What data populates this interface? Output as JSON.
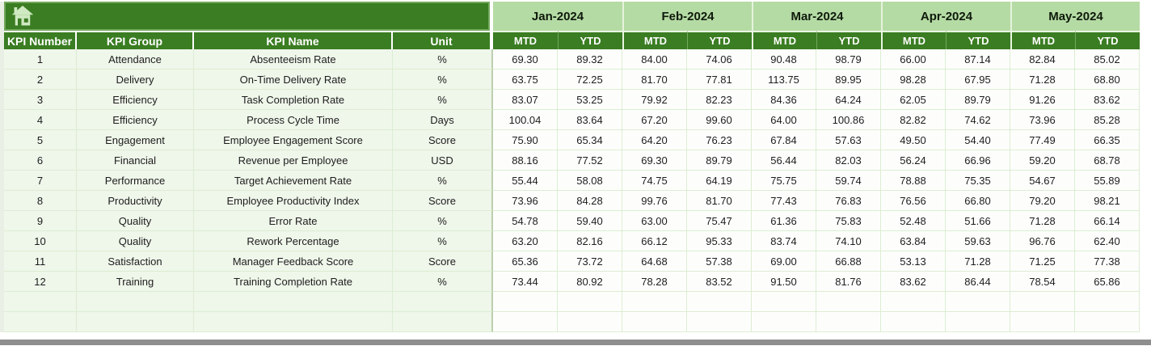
{
  "app": {
    "home_icon": "home-navigation-button"
  },
  "table": {
    "left_headers": [
      "KPI Number",
      "KPI Group",
      "KPI Name",
      "Unit"
    ],
    "months": [
      "Jan-2024",
      "Feb-2024",
      "Mar-2024",
      "Apr-2024",
      "May-2024"
    ],
    "sub_headers": [
      "MTD",
      "YTD"
    ],
    "rows": [
      {
        "number": "1",
        "group": "Attendance",
        "name": "Absenteeism Rate",
        "unit": "%",
        "values": [
          "69.30",
          "89.32",
          "84.00",
          "74.06",
          "90.48",
          "98.79",
          "66.00",
          "87.14",
          "82.84",
          "85.02"
        ]
      },
      {
        "number": "2",
        "group": "Delivery",
        "name": "On-Time Delivery Rate",
        "unit": "%",
        "values": [
          "63.75",
          "72.25",
          "81.70",
          "77.81",
          "113.75",
          "89.95",
          "98.28",
          "67.95",
          "71.28",
          "68.80"
        ]
      },
      {
        "number": "3",
        "group": "Efficiency",
        "name": "Task Completion Rate",
        "unit": "%",
        "values": [
          "83.07",
          "53.25",
          "79.92",
          "82.23",
          "84.36",
          "64.24",
          "62.05",
          "89.79",
          "91.26",
          "83.62"
        ]
      },
      {
        "number": "4",
        "group": "Efficiency",
        "name": "Process Cycle Time",
        "unit": "Days",
        "values": [
          "100.04",
          "83.64",
          "67.20",
          "99.60",
          "64.00",
          "100.86",
          "82.82",
          "74.62",
          "73.96",
          "85.28"
        ]
      },
      {
        "number": "5",
        "group": "Engagement",
        "name": "Employee Engagement Score",
        "unit": "Score",
        "values": [
          "75.90",
          "65.34",
          "64.20",
          "76.23",
          "67.84",
          "57.63",
          "49.50",
          "54.40",
          "77.49",
          "66.35"
        ]
      },
      {
        "number": "6",
        "group": "Financial",
        "name": "Revenue per Employee",
        "unit": "USD",
        "values": [
          "88.16",
          "77.52",
          "69.30",
          "89.79",
          "56.44",
          "82.03",
          "56.24",
          "66.96",
          "59.20",
          "68.78"
        ]
      },
      {
        "number": "7",
        "group": "Performance",
        "name": "Target Achievement Rate",
        "unit": "%",
        "values": [
          "55.44",
          "58.08",
          "74.75",
          "64.19",
          "75.75",
          "59.74",
          "78.88",
          "75.35",
          "54.67",
          "55.89"
        ]
      },
      {
        "number": "8",
        "group": "Productivity",
        "name": "Employee Productivity Index",
        "unit": "Score",
        "values": [
          "73.96",
          "84.28",
          "99.76",
          "81.70",
          "77.43",
          "76.83",
          "76.56",
          "66.80",
          "79.20",
          "98.21"
        ]
      },
      {
        "number": "9",
        "group": "Quality",
        "name": "Error Rate",
        "unit": "%",
        "values": [
          "54.78",
          "59.40",
          "63.00",
          "75.47",
          "61.36",
          "75.83",
          "52.48",
          "51.66",
          "71.28",
          "66.14"
        ]
      },
      {
        "number": "10",
        "group": "Quality",
        "name": "Rework Percentage",
        "unit": "%",
        "values": [
          "63.20",
          "82.16",
          "66.12",
          "95.33",
          "83.74",
          "74.10",
          "63.84",
          "59.63",
          "96.76",
          "62.40"
        ]
      },
      {
        "number": "11",
        "group": "Satisfaction",
        "name": "Manager Feedback Score",
        "unit": "Score",
        "values": [
          "65.36",
          "73.72",
          "64.68",
          "57.38",
          "69.00",
          "66.88",
          "53.13",
          "71.28",
          "71.25",
          "77.38"
        ]
      },
      {
        "number": "12",
        "group": "Training",
        "name": "Training Completion Rate",
        "unit": "%",
        "values": [
          "73.44",
          "80.92",
          "78.28",
          "83.52",
          "91.50",
          "81.76",
          "83.62",
          "86.44",
          "78.54",
          "65.86"
        ]
      }
    ],
    "empty_rows": 2
  },
  "colors": {
    "header_dark_green": "#3A7D22",
    "header_light_green": "#B5DBA4",
    "row_tint_green": "#EFF6EA",
    "value_cell_white": "#FDFEFC",
    "gridline_green": "#DCEDD2",
    "bottom_bar_gray": "#8F8F8F"
  }
}
